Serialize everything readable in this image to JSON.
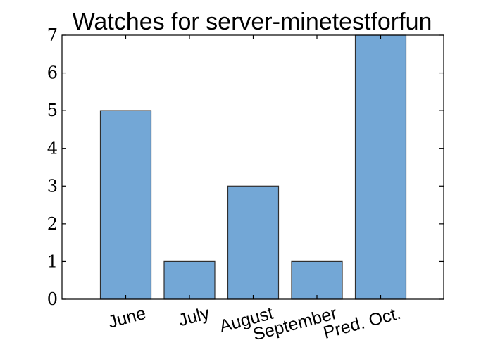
{
  "chart_data": {
    "type": "bar",
    "title": "Watches for server-minetestforfun",
    "categories": [
      "June",
      "July",
      "August",
      "September",
      "Pred. Oct."
    ],
    "values": [
      5,
      1,
      3,
      1,
      7
    ],
    "ylim": [
      0,
      7
    ],
    "yticks": [
      0,
      1,
      2,
      3,
      4,
      5,
      6,
      7
    ],
    "xlabel": "",
    "ylabel": "",
    "grid": false,
    "bar_color": "#73a7d6",
    "edge_color": "#2f2f2f"
  }
}
